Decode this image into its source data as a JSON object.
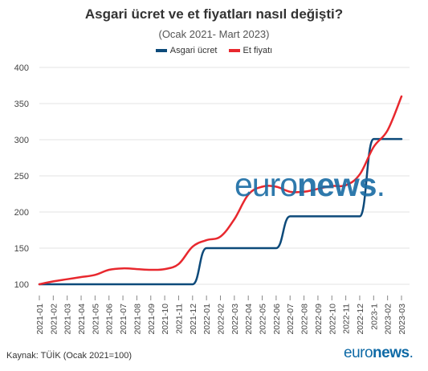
{
  "header": {
    "title": "Asgari ücret ve et fiyatları nasıl değişti?",
    "subtitle": "(Ocak 2021- Mart 2023)"
  },
  "footer": {
    "source": "Kaynak: TÜİK (Ocak 2021=100)",
    "logo_light": "euro",
    "logo_bold": "news",
    "logo_dot": "."
  },
  "watermark": {
    "light": "euro",
    "bold": "news",
    "dot": "."
  },
  "colors": {
    "asgari": "#0d4a7a",
    "et": "#e8282e",
    "grid": "#e3e3e3",
    "axis_text": "#444444"
  },
  "chart_data": {
    "type": "line",
    "title": "Asgari ücret ve et fiyatları nasıl değişti?",
    "subtitle": "(Ocak 2021- Mart 2023)",
    "ylim": [
      100,
      400
    ],
    "y_ticks": [
      100,
      150,
      200,
      250,
      300,
      350,
      400
    ],
    "grid": true,
    "legend_position": "top-center",
    "x": [
      "2021-01",
      "2021-02",
      "2021-03",
      "2021-04",
      "2021-05",
      "2021-06",
      "2021-07",
      "2021-08",
      "2021-09",
      "2021-10",
      "2021-11",
      "2021-12",
      "2022-01",
      "2022-02",
      "2022-03",
      "2022-04",
      "2022-05",
      "2022-06",
      "2022-07",
      "2022-08",
      "2022-09",
      "2022-10",
      "2022-11",
      "2022-12",
      "2023-1",
      "2023-02",
      "2023-03"
    ],
    "series": [
      {
        "name": "Asgari ücret",
        "color": "#0d4a7a",
        "values": [
          100,
          100,
          100,
          100,
          100,
          100,
          100,
          100,
          100,
          100,
          100,
          100,
          150,
          150,
          150,
          150,
          150,
          150,
          194,
          194,
          194,
          194,
          194,
          194,
          301,
          301,
          301
        ]
      },
      {
        "name": "Et fiyatı",
        "color": "#e8282e",
        "values": [
          100,
          104,
          107,
          110,
          113,
          120,
          122,
          121,
          120,
          121,
          128,
          152,
          161,
          166,
          190,
          224,
          235,
          235,
          228,
          228,
          232,
          236,
          237,
          252,
          290,
          313,
          360
        ]
      }
    ]
  }
}
